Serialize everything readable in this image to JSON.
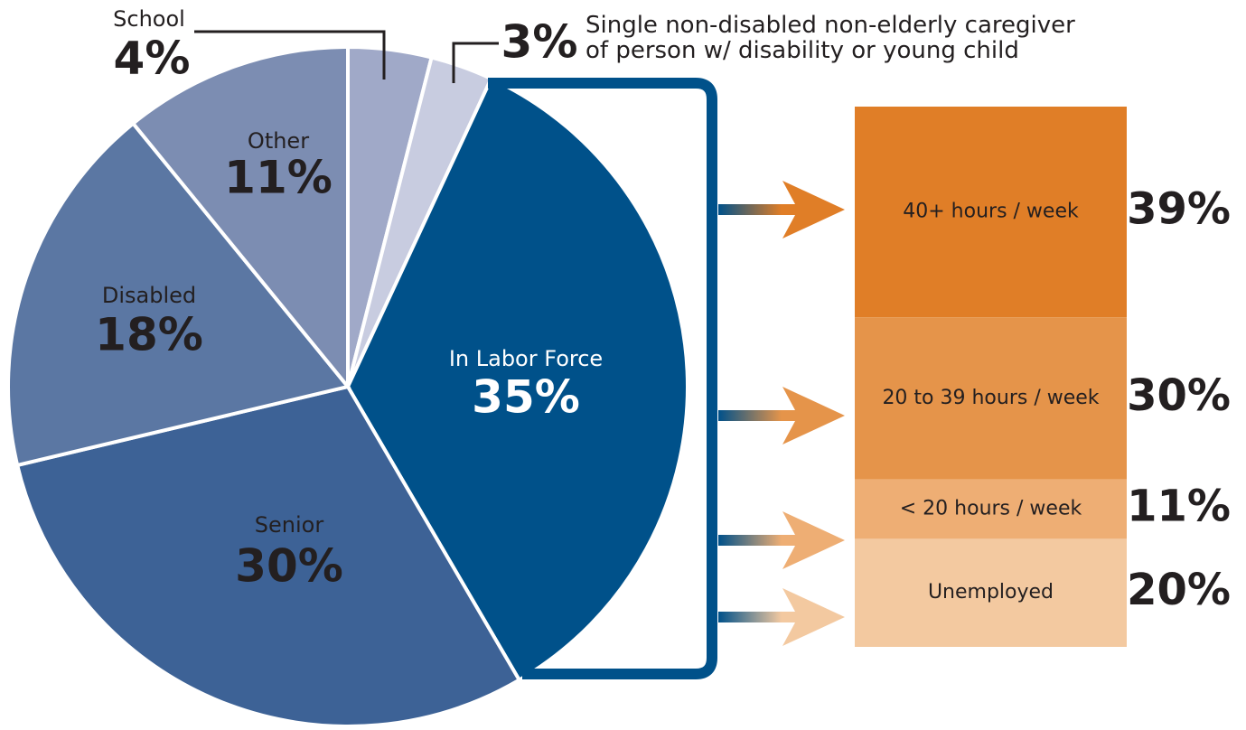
{
  "chart_data": [
    {
      "type": "pie",
      "categories": [
        "School",
        "Single non-disabled non-elderly caregiver of person w/ disability or young child",
        "In Labor Force",
        "Senior",
        "Disabled",
        "Other"
      ],
      "values": [
        4,
        3,
        35,
        30,
        18,
        11
      ],
      "value_labels": [
        "4%",
        "3%",
        "35%",
        "30%",
        "18%",
        "11%"
      ],
      "colors": [
        "#a0a9c8",
        "#c8cce0",
        "#00518a",
        "#3d6296",
        "#5b77a3",
        "#7c8db2"
      ]
    },
    {
      "type": "bar",
      "categories": [
        "40+ hours / week",
        "20 to 39 hours / week",
        "< 20 hours / week",
        "Unemployed"
      ],
      "values": [
        39,
        30,
        11,
        20
      ],
      "value_labels": [
        "39%",
        "30%",
        "11%",
        "20%"
      ],
      "colors": [
        "#e07e27",
        "#e5944a",
        "#eeae74",
        "#f3c9a0"
      ]
    }
  ]
}
